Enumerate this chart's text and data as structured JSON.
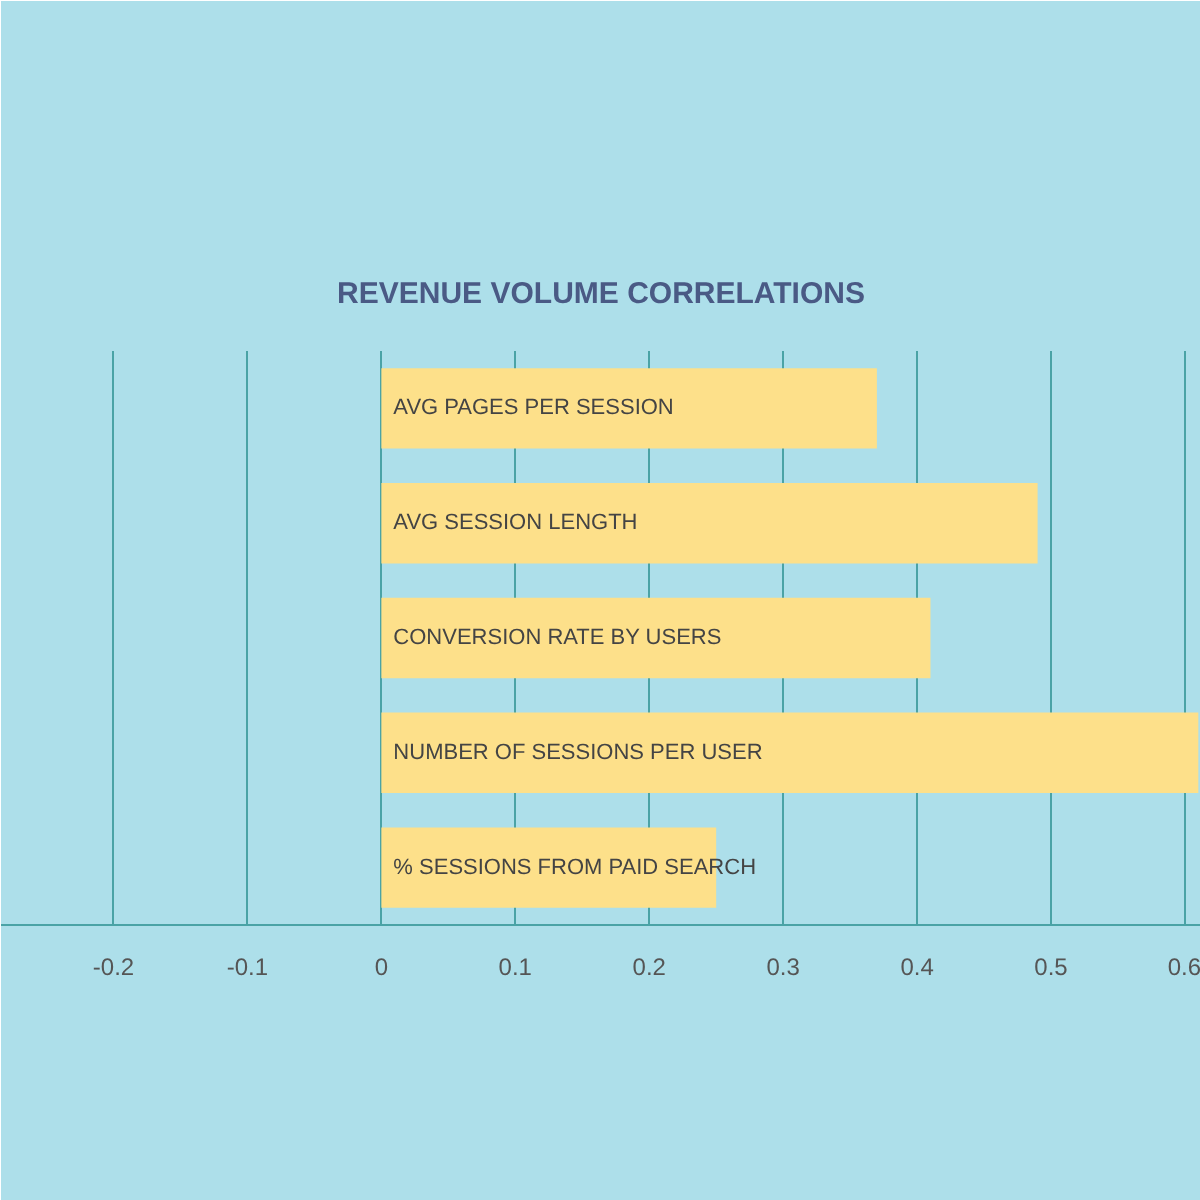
{
  "chart_data": {
    "type": "bar",
    "orientation": "horizontal",
    "title": "REVENUE VOLUME CORRELATIONS",
    "categories": [
      "AVG PAGES PER SESSION",
      "AVG SESSION LENGTH",
      "CONVERSION RATE BY USERS",
      "NUMBER OF SESSIONS PER USER",
      "% SESSIONS FROM PAID SEARCH"
    ],
    "values": [
      0.37,
      0.49,
      0.41,
      0.61,
      0.25
    ],
    "color": "#fde08a",
    "xlim": [
      -0.284,
      0.612
    ],
    "xticks": [
      -0.2,
      -0.1,
      0,
      0.1,
      0.2,
      0.3,
      0.4,
      0.5,
      0.6
    ],
    "grid": "x"
  }
}
